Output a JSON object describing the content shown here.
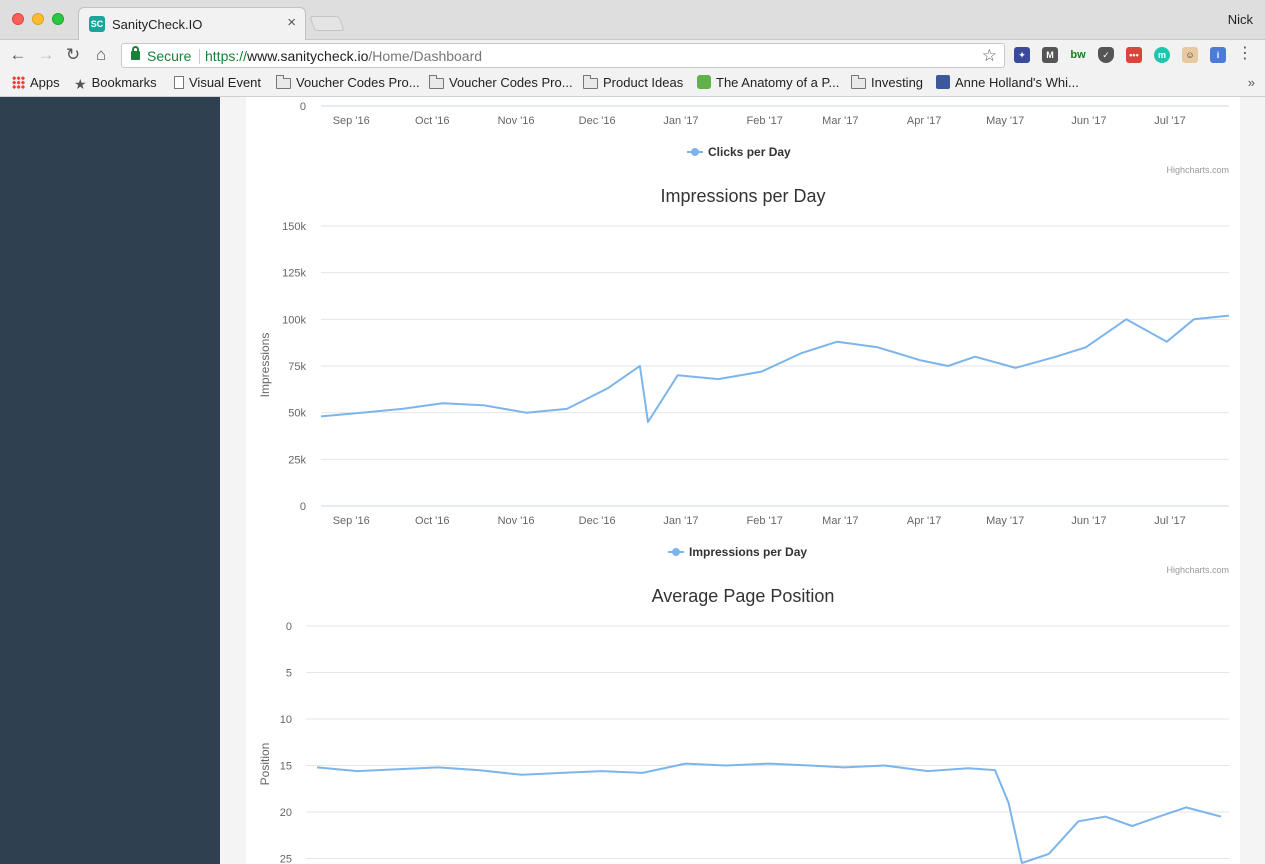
{
  "browser": {
    "tab_title": "SanityCheck.IO",
    "favicon_text": "SC",
    "profile_name": "Nick",
    "secure_label": "Secure",
    "url_scheme": "https://",
    "url_host": "www.sanitycheck.io",
    "url_path": "/Home/Dashboard",
    "bookmarks": [
      {
        "label": "Apps",
        "icon": "apps-icon"
      },
      {
        "label": "Bookmarks",
        "icon": "star-icon"
      },
      {
        "label": "Visual Event",
        "icon": "page-icon"
      },
      {
        "label": "Voucher Codes Pro...",
        "icon": "folder-icon"
      },
      {
        "label": "Voucher Codes Pro...",
        "icon": "folder-icon"
      },
      {
        "label": "Product Ideas",
        "icon": "folder-icon"
      },
      {
        "label": "The Anatomy of a P...",
        "icon": "evernote-icon"
      },
      {
        "label": "Investing",
        "icon": "folder-icon"
      },
      {
        "label": "Anne Holland's Whi...",
        "icon": "facebook-icon"
      }
    ],
    "bookmark_overflow": "»",
    "colors": {
      "sidebar": "#2f4050",
      "series": "#7cb5ec",
      "secure": "#188038"
    }
  },
  "credits": "Highcharts.com",
  "month_labels": [
    "Sep '16",
    "Oct '16",
    "Nov '16",
    "Dec '16",
    "Jan '17",
    "Feb '17",
    "Mar '17",
    "Apr '17",
    "May '17",
    "Jun '17",
    "Jul '17"
  ],
  "chart_data": [
    {
      "type": "line",
      "title": "",
      "ylabel": "",
      "series": [
        {
          "name": "Clicks per Day"
        }
      ],
      "visible_tick": "0",
      "note": ""
    },
    {
      "type": "line",
      "title": "Impressions per Day",
      "ylabel": "Impressions",
      "ylim": [
        0,
        150000
      ],
      "yticks": [
        "0",
        "25k",
        "50k",
        "75k",
        "100k",
        "125k",
        "150k"
      ],
      "ytick_values": [
        0,
        25000,
        50000,
        75000,
        100000,
        125000,
        150000
      ],
      "xlim": [
        "2016-08-26",
        "2017-07-28"
      ],
      "series": [
        {
          "name": "Impressions per Day",
          "x": [
            "2016-08-26",
            "2016-09-10",
            "2016-09-25",
            "2016-10-10",
            "2016-10-25",
            "2016-11-10",
            "2016-11-25",
            "2016-12-10",
            "2016-12-22",
            "2016-12-25",
            "2017-01-05",
            "2017-01-20",
            "2017-02-05",
            "2017-02-20",
            "2017-03-05",
            "2017-03-20",
            "2017-04-05",
            "2017-04-15",
            "2017-04-25",
            "2017-05-10",
            "2017-05-25",
            "2017-06-05",
            "2017-06-20",
            "2017-07-05",
            "2017-07-15",
            "2017-07-28"
          ],
          "y": [
            48000,
            50000,
            52000,
            55000,
            54000,
            50000,
            52000,
            63000,
            75000,
            45000,
            70000,
            68000,
            72000,
            82000,
            88000,
            85000,
            78000,
            75000,
            80000,
            74000,
            80000,
            85000,
            100000,
            88000,
            100000,
            102000
          ]
        }
      ]
    },
    {
      "type": "line",
      "title": "Average Page Position",
      "ylabel": "Position",
      "y_reversed": true,
      "yticks": [
        "0",
        "5",
        "10",
        "15",
        "20",
        "25"
      ],
      "ytick_values": [
        0,
        5,
        10,
        15,
        20,
        25
      ],
      "xlim": [
        "2016-08-26",
        "2017-07-28"
      ],
      "series": [
        {
          "name": "Average Page Position",
          "x": [
            "2016-08-26",
            "2016-09-10",
            "2016-09-25",
            "2016-10-10",
            "2016-10-25",
            "2016-11-10",
            "2016-11-25",
            "2016-12-10",
            "2016-12-25",
            "2017-01-10",
            "2017-01-25",
            "2017-02-10",
            "2017-02-25",
            "2017-03-10",
            "2017-03-25",
            "2017-04-10",
            "2017-04-25",
            "2017-05-05",
            "2017-05-10",
            "2017-05-15",
            "2017-05-25",
            "2017-06-05",
            "2017-06-15",
            "2017-06-25",
            "2017-07-05",
            "2017-07-15",
            "2017-07-28"
          ],
          "y": [
            15.2,
            15.6,
            15.4,
            15.2,
            15.5,
            16.0,
            15.8,
            15.6,
            15.8,
            14.8,
            15.0,
            14.8,
            15.0,
            15.2,
            15.0,
            15.6,
            15.3,
            15.5,
            19.0,
            25.5,
            24.5,
            21.0,
            20.5,
            21.5,
            20.5,
            19.5,
            20.5
          ]
        }
      ]
    }
  ]
}
